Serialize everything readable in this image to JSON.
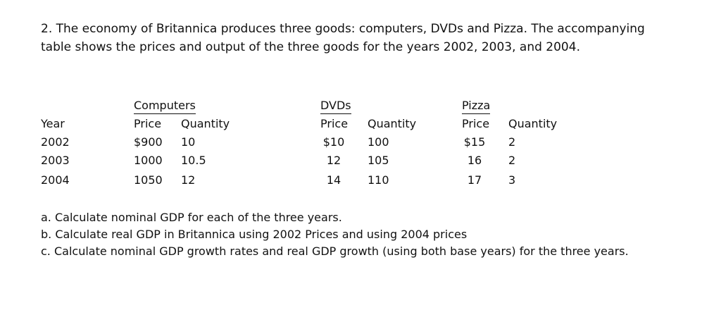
{
  "intro": {
    "line1": "2. The economy of Britannica produces three goods: computers, DVDs and Pizza. The accompanying",
    "line2": "table shows the prices and output of the three goods for the years 2002, 2003, and 2004."
  },
  "table": {
    "year_header": "Year",
    "groups": {
      "computers": "Computers",
      "dvds": "DVDs",
      "pizza": "Pizza"
    },
    "price_label": "Price",
    "quantity_label": "Quantity",
    "rows": [
      {
        "year": "2002",
        "comp_price": "$900",
        "comp_qty": "10",
        "dvd_price": "$10",
        "dvd_qty": "100",
        "pizza_price": "$15",
        "pizza_qty": "2"
      },
      {
        "year": "2003",
        "comp_price": "1000",
        "comp_qty": "10.5",
        "dvd_price": "12",
        "dvd_qty": "105",
        "pizza_price": "16",
        "pizza_qty": "2"
      },
      {
        "year": "2004",
        "comp_price": "1050",
        "comp_qty": "12",
        "dvd_price": "14",
        "dvd_qty": "110",
        "pizza_price": "17",
        "pizza_qty": "3"
      }
    ]
  },
  "questions": {
    "a": "a. Calculate nominal GDP for each of the three years.",
    "b": "b. Calculate real GDP in Britannica using 2002 Prices and using 2004 prices",
    "c": "c. Calculate nominal GDP growth rates and real GDP growth (using both base years) for the three years."
  }
}
